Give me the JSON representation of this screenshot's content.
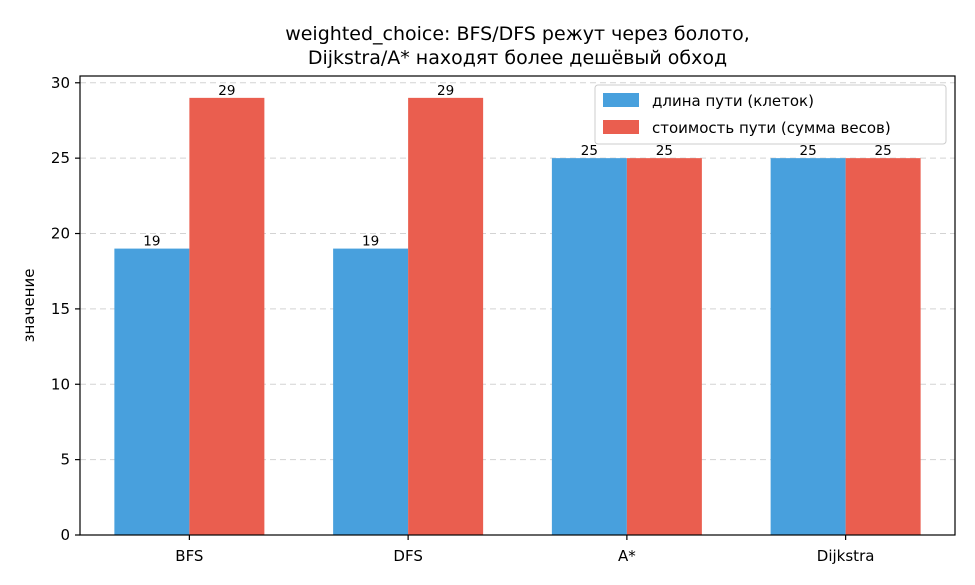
{
  "chart_data": {
    "type": "bar",
    "title": "weighted_choice: BFS/DFS режут через болото,\nDijkstra/A* находят более дешёвый обход",
    "xlabel": "",
    "ylabel": "значение",
    "categories": [
      "BFS",
      "DFS",
      "A*",
      "Dijkstra"
    ],
    "series": [
      {
        "name": "длина пути (клеток)",
        "values": [
          19,
          19,
          25,
          25
        ],
        "color": "#48a0dd"
      },
      {
        "name": "стоимость пути (сумма весов)",
        "values": [
          29,
          29,
          25,
          25
        ],
        "color": "#ea5e4f"
      }
    ],
    "ylim": [
      0,
      30.45
    ],
    "yticks": [
      0,
      5,
      10,
      15,
      20,
      25,
      30
    ],
    "grid": "horizontal-dashed",
    "legend_position": "top-right"
  }
}
